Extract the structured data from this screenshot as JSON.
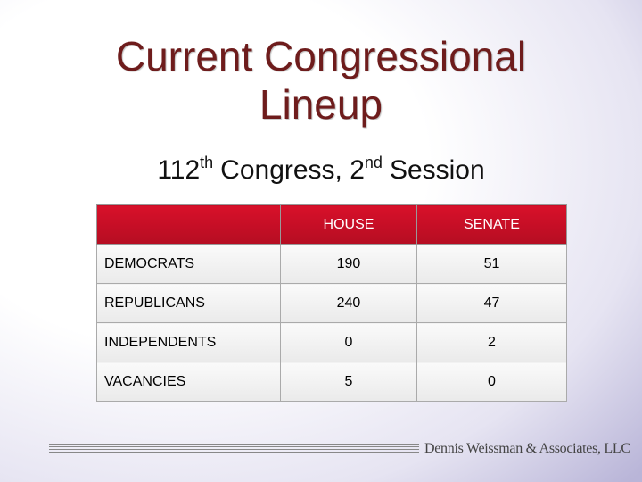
{
  "title": "Current Congressional Lineup",
  "subtitle": {
    "parts": [
      "112",
      "th",
      "Congress, 2",
      "nd",
      "Session"
    ]
  },
  "table": {
    "columns": [
      "HOUSE",
      "SENATE"
    ],
    "rows": [
      {
        "label": "DEMOCRATS",
        "values": [
          190,
          51
        ]
      },
      {
        "label": "REPUBLICANS",
        "values": [
          240,
          47
        ]
      },
      {
        "label": "INDEPENDENTS",
        "values": [
          0,
          2
        ]
      },
      {
        "label": "VACANCIES",
        "values": [
          5,
          0
        ]
      }
    ]
  },
  "footer": "Dennis Weissman & Associates, LLC"
}
